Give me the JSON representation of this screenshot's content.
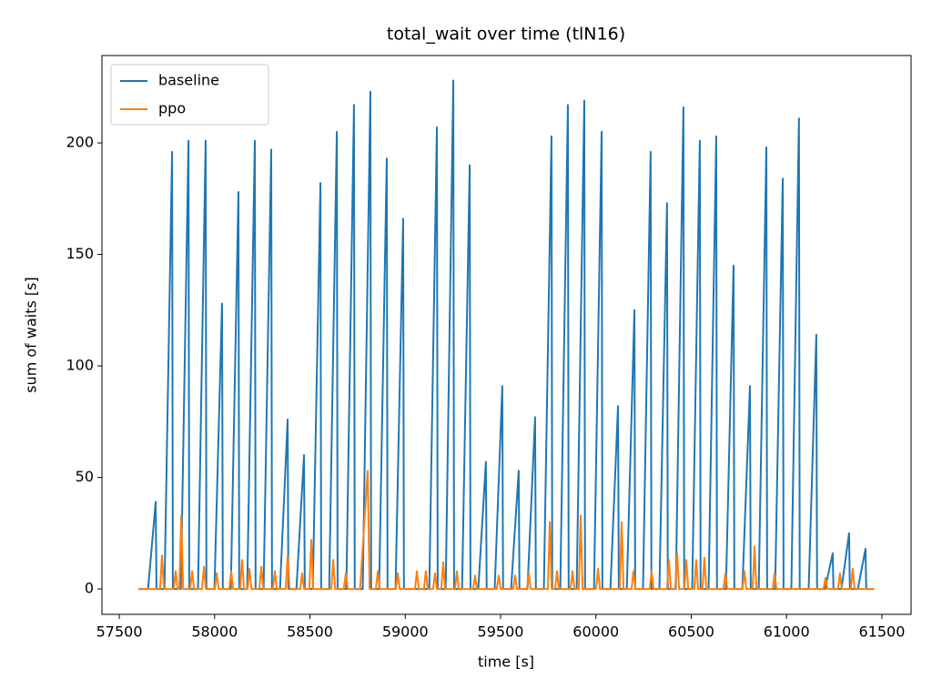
{
  "chart_data": {
    "type": "line",
    "title": "total_wait over time (tlN16)",
    "x_label": "time [s]",
    "y_label": "sum of waits [s]",
    "xlim": [
      57409,
      61653
    ],
    "ylim": [
      -11.4,
      239.2
    ],
    "xticks": [
      57500,
      58000,
      58500,
      59000,
      59500,
      60000,
      60500,
      61000,
      61500
    ],
    "yticks": [
      0,
      50,
      100,
      150,
      200
    ],
    "legend": "upper left",
    "series": [
      {
        "name": "baseline",
        "color": "#1f77b4",
        "x": [
          57600,
          57651,
          57691,
          57695,
          57737,
          57777,
          57781,
          57823,
          57863,
          57867,
          57913,
          57953,
          57957,
          57999,
          58039,
          58043,
          58085,
          58125,
          58129,
          58171,
          58211,
          58215,
          58257,
          58297,
          58301,
          58343,
          58383,
          58387,
          58429,
          58469,
          58473,
          58515,
          58555,
          58559,
          58601,
          58641,
          58645,
          58691,
          58731,
          58735,
          58777,
          58817,
          58821,
          58863,
          58903,
          58907,
          58949,
          58989,
          58993,
          59126,
          59166,
          59170,
          59212,
          59252,
          59256,
          59298,
          59338,
          59342,
          59383,
          59423,
          59427,
          59469,
          59509,
          59513,
          59555,
          59595,
          59599,
          59641,
          59681,
          59685,
          59727,
          59767,
          59771,
          59813,
          59853,
          59857,
          59899,
          59939,
          59943,
          59990,
          60030,
          60034,
          60076,
          60116,
          60120,
          60162,
          60202,
          60206,
          60247,
          60287,
          60291,
          60333,
          60373,
          60377,
          60419,
          60459,
          60463,
          60505,
          60545,
          60549,
          60591,
          60631,
          60635,
          60682,
          60722,
          60726,
          60768,
          60808,
          60812,
          60854,
          60894,
          60898,
          60940,
          60980,
          60984,
          61025,
          61065,
          61069,
          61116,
          61156,
          61160,
          61202,
          61242,
          61246,
          61288,
          61328,
          61332,
          61374,
          61414,
          61418,
          61460
        ],
        "values": [
          0,
          0,
          39,
          0,
          0,
          196,
          0,
          0,
          201,
          0,
          0,
          201,
          0,
          0,
          128,
          0,
          0,
          178,
          0,
          0,
          201,
          0,
          0,
          197,
          0,
          0,
          76,
          0,
          0,
          60,
          0,
          0,
          182,
          0,
          0,
          205,
          0,
          0,
          217,
          0,
          0,
          223,
          0,
          0,
          193,
          0,
          0,
          166,
          0,
          0,
          207,
          0,
          0,
          228,
          0,
          0,
          190,
          0,
          0,
          57,
          0,
          0,
          91,
          0,
          0,
          53,
          0,
          0,
          77,
          0,
          0,
          203,
          0,
          0,
          217,
          0,
          0,
          219,
          0,
          0,
          205,
          0,
          0,
          82,
          0,
          0,
          125,
          0,
          0,
          196,
          0,
          0,
          173,
          0,
          0,
          216,
          0,
          0,
          201,
          0,
          0,
          203,
          0,
          0,
          145,
          0,
          0,
          91,
          0,
          0,
          198,
          0,
          0,
          184,
          0,
          0,
          211,
          0,
          0,
          114,
          0,
          0,
          16,
          0,
          0,
          25,
          0,
          0,
          18,
          0,
          0
        ]
      },
      {
        "name": "ppo",
        "color": "#ff7f0e",
        "x": [
          57600,
          57714,
          57724,
          57734,
          57786,
          57796,
          57806,
          57815,
          57825,
          57835,
          57872,
          57882,
          57892,
          57934,
          57944,
          57954,
          58001,
          58011,
          58021,
          58077,
          58087,
          58097,
          58134,
          58144,
          58154,
          58173,
          58183,
          58193,
          58235,
          58245,
          58255,
          58306,
          58316,
          58326,
          58373,
          58383,
          58393,
          58449,
          58459,
          58469,
          58497,
          58507,
          58517,
          58612,
          58622,
          58632,
          58678,
          58688,
          58698,
          58763,
          58803,
          58813,
          58846,
          58856,
          58866,
          58951,
          58961,
          58971,
          59051,
          59061,
          59071,
          59098,
          59108,
          59118,
          59146,
          59156,
          59166,
          59189,
          59199,
          59209,
          59261,
          59271,
          59281,
          59356,
          59366,
          59376,
          59480,
          59490,
          59500,
          59566,
          59576,
          59586,
          59638,
          59648,
          59658,
          59748,
          59758,
          59768,
          59786,
          59796,
          59806,
          59867,
          59877,
          59887,
          59910,
          59920,
          59930,
          60001,
          60011,
          60021,
          60125,
          60135,
          60145,
          60187,
          60197,
          60207,
          60282,
          60292,
          60302,
          60373,
          60383,
          60393,
          60416,
          60426,
          60436,
          60464,
          60474,
          60484,
          60516,
          60526,
          60536,
          60559,
          60569,
          60579,
          60669,
          60679,
          60689,
          60769,
          60779,
          60789,
          60822,
          60832,
          60842,
          60927,
          60937,
          60947,
          61194,
          61204,
          61214,
          61270,
          61280,
          61290,
          61337,
          61347,
          61357,
          61460
        ],
        "values": [
          0,
          0,
          15,
          0,
          0,
          8,
          0,
          0,
          33,
          0,
          0,
          8,
          0,
          0,
          10,
          0,
          0,
          7,
          0,
          0,
          8,
          0,
          0,
          13,
          0,
          0,
          9,
          0,
          0,
          10,
          0,
          0,
          8,
          0,
          0,
          15,
          0,
          0,
          7,
          0,
          0,
          22,
          0,
          0,
          13,
          0,
          0,
          7,
          0,
          0,
          53,
          0,
          0,
          8,
          0,
          0,
          7,
          0,
          0,
          8,
          0,
          0,
          8,
          0,
          0,
          7,
          0,
          0,
          12,
          0,
          0,
          8,
          0,
          0,
          6,
          0,
          0,
          6,
          0,
          0,
          6,
          0,
          0,
          7,
          0,
          0,
          30,
          0,
          0,
          8,
          0,
          0,
          8,
          0,
          0,
          33,
          0,
          0,
          9,
          0,
          0,
          30,
          0,
          0,
          8,
          0,
          0,
          8,
          0,
          0,
          13,
          0,
          0,
          16,
          0,
          0,
          13,
          0,
          0,
          13,
          0,
          0,
          14,
          0,
          0,
          7,
          0,
          0,
          8,
          0,
          0,
          19,
          0,
          0,
          7,
          0,
          0,
          5,
          0,
          0,
          7,
          0,
          0,
          9,
          0,
          0
        ]
      }
    ]
  }
}
